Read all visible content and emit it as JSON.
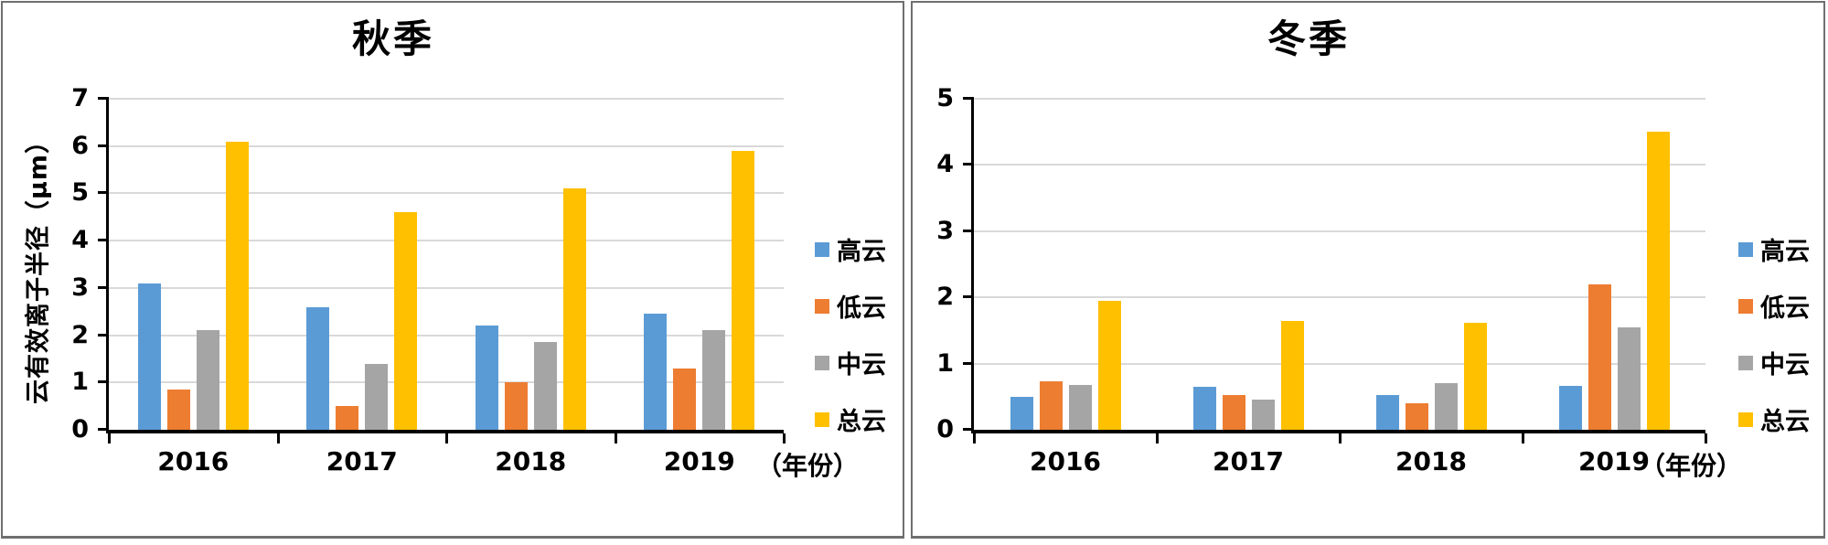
{
  "palette": {
    "axis_color": "#000000",
    "gridline_color": "#d9d9d9",
    "panel_border_color": "#6f6f6f",
    "background": "#ffffff"
  },
  "chart_data": [
    {
      "type": "bar",
      "title": "秋季",
      "ylabel": "云有效离子半径（μm）",
      "xlabel": "（年份）",
      "categories": [
        "2016",
        "2017",
        "2018",
        "2019"
      ],
      "series": [
        {
          "name": "高云",
          "color": "#5B9BD5",
          "values": [
            3.1,
            2.6,
            2.2,
            2.45
          ]
        },
        {
          "name": "低云",
          "color": "#ED7D31",
          "values": [
            0.85,
            0.5,
            1.0,
            1.3
          ]
        },
        {
          "name": "中云",
          "color": "#A5A5A5",
          "values": [
            2.1,
            1.4,
            1.85,
            2.1
          ]
        },
        {
          "name": "总云",
          "color": "#FFC000",
          "values": [
            6.1,
            4.6,
            5.1,
            5.9
          ]
        }
      ],
      "ylim": [
        0,
        7
      ],
      "ytick_step": 1,
      "grid": true,
      "legend_position": "right"
    },
    {
      "type": "bar",
      "title": "冬季",
      "ylabel": "",
      "xlabel": "（年份）",
      "categories": [
        "2016",
        "2017",
        "2018",
        "2019"
      ],
      "series": [
        {
          "name": "高云",
          "color": "#5B9BD5",
          "values": [
            0.5,
            0.65,
            0.52,
            0.67
          ]
        },
        {
          "name": "低云",
          "color": "#ED7D31",
          "values": [
            0.73,
            0.52,
            0.4,
            2.2
          ]
        },
        {
          "name": "中云",
          "color": "#A5A5A5",
          "values": [
            0.68,
            0.45,
            0.7,
            1.55
          ]
        },
        {
          "name": "总云",
          "color": "#FFC000",
          "values": [
            1.95,
            1.65,
            1.62,
            4.5
          ]
        }
      ],
      "ylim": [
        0,
        5
      ],
      "ytick_step": 1,
      "grid": true,
      "legend_position": "right"
    }
  ]
}
